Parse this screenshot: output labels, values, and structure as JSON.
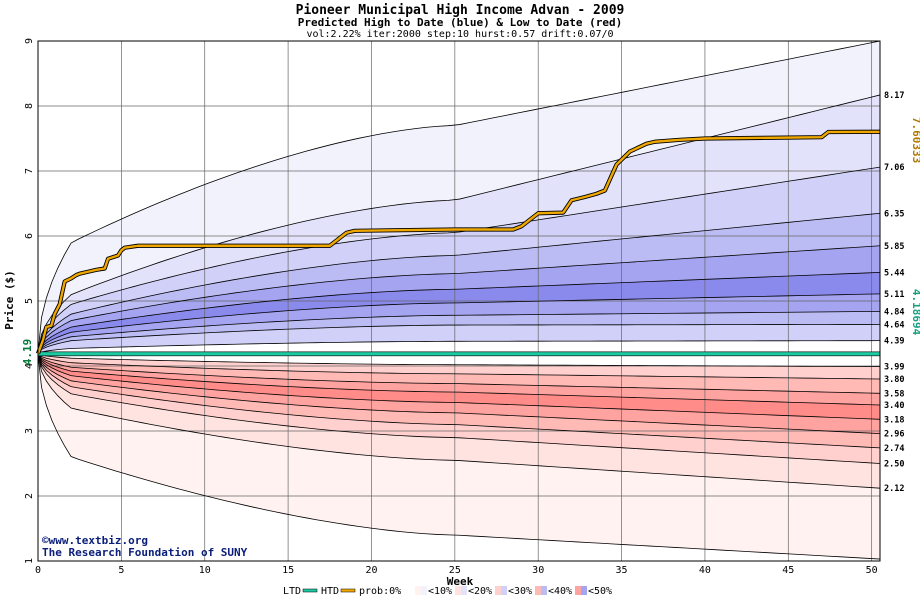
{
  "colors": {
    "htd": "#f0a800",
    "ltd": "#1ec8a0",
    "blue_bands": [
      "#f2f2fc",
      "#e2e2fb",
      "#d0d0f8",
      "#bcbcf4",
      "#a4a4f0",
      "#8a8aec"
    ],
    "red_bands": [
      "#fff2f1",
      "#ffe3e1",
      "#ffd0cd",
      "#ffbab6",
      "#ffa3a0",
      "#ff8c88"
    ]
  },
  "chart_data": {
    "type": "area",
    "title": "Pioneer Municipal High Income Advan - 2009",
    "subtitle": "Predicted High to Date (blue) &  Low to Date (red)",
    "params": "vol:2.22% iter:2000 step:10 hurst:0.57 drift:0.07/0",
    "xlabel": "Week",
    "ylabel": "Price ($)",
    "xlim": [
      0,
      50.5
    ],
    "ylim": [
      1,
      9
    ],
    "x_ticks": [
      0,
      5,
      10,
      15,
      20,
      25,
      30,
      35,
      40,
      45,
      50
    ],
    "y_ticks": [
      1,
      2,
      3,
      4,
      5,
      6,
      7,
      8,
      9
    ],
    "start_price": 4.19,
    "start_label": "4.19",
    "high_final_labels": [
      "8.17",
      "7.06",
      "6.35",
      "5.85",
      "5.44",
      "5.11",
      "4.84",
      "4.64",
      "4.39"
    ],
    "low_final_labels": [
      "3.99",
      "3.80",
      "3.58",
      "3.40",
      "3.18",
      "2.96",
      "2.74",
      "2.50",
      "2.12"
    ],
    "high_quantile_lines": [
      {
        "final": 9.0,
        "mid": 7.7,
        "early": 5.9,
        "label": ""
      },
      {
        "final": 8.17,
        "mid": 6.55,
        "early": 5.1,
        "label": "8.17"
      },
      {
        "final": 7.06,
        "mid": 6.05,
        "early": 4.95,
        "label": "7.06"
      },
      {
        "final": 6.35,
        "mid": 5.7,
        "early": 4.8,
        "label": "6.35"
      },
      {
        "final": 5.85,
        "mid": 5.42,
        "early": 4.7,
        "label": "5.85"
      },
      {
        "final": 5.44,
        "mid": 5.18,
        "early": 4.6,
        "label": "5.44"
      },
      {
        "final": 5.11,
        "mid": 4.97,
        "early": 4.52,
        "label": "5.11"
      },
      {
        "final": 4.84,
        "mid": 4.78,
        "early": 4.45,
        "label": "4.84"
      },
      {
        "final": 4.64,
        "mid": 4.63,
        "early": 4.39,
        "label": "4.64"
      },
      {
        "final": 4.39,
        "mid": 4.38,
        "early": 4.27,
        "label": "4.39"
      }
    ],
    "low_quantile_lines": [
      {
        "final": 3.99,
        "mid": 4.02,
        "early": 4.12,
        "label": "3.99"
      },
      {
        "final": 3.8,
        "mid": 3.88,
        "early": 4.05,
        "label": "3.80"
      },
      {
        "final": 3.58,
        "mid": 3.73,
        "early": 3.98,
        "label": "3.58"
      },
      {
        "final": 3.4,
        "mid": 3.6,
        "early": 3.92,
        "label": "3.40"
      },
      {
        "final": 3.18,
        "mid": 3.44,
        "early": 3.85,
        "label": "3.18"
      },
      {
        "final": 2.96,
        "mid": 3.28,
        "early": 3.77,
        "label": "2.96"
      },
      {
        "final": 2.74,
        "mid": 3.1,
        "early": 3.68,
        "label": "2.74"
      },
      {
        "final": 2.5,
        "mid": 2.9,
        "early": 3.57,
        "label": "2.50"
      },
      {
        "final": 2.12,
        "mid": 2.55,
        "early": 3.35,
        "label": "2.12"
      },
      {
        "final": 1.03,
        "mid": 1.4,
        "early": 2.6,
        "label": ""
      }
    ],
    "htd_series": {
      "name": "HTD",
      "final_label": "7.60333",
      "x": [
        0,
        0.3,
        0.5,
        0.8,
        1.0,
        1.3,
        1.6,
        2.0,
        2.3,
        2.5,
        3.0,
        3.5,
        4.0,
        4.2,
        4.8,
        5.0,
        5.2,
        6.0,
        17.5,
        18.0,
        18.5,
        19.0,
        25.0,
        28.5,
        29.0,
        30.0,
        31.5,
        32.0,
        32.8,
        33.5,
        34.0,
        34.7,
        35.5,
        36.5,
        37.0,
        38.5,
        40.0,
        47.0,
        47.4,
        50.5
      ],
      "y": [
        4.19,
        4.4,
        4.6,
        4.62,
        4.8,
        4.95,
        5.3,
        5.35,
        5.4,
        5.42,
        5.45,
        5.48,
        5.5,
        5.65,
        5.7,
        5.78,
        5.82,
        5.85,
        5.85,
        5.95,
        6.05,
        6.08,
        6.1,
        6.1,
        6.15,
        6.35,
        6.36,
        6.55,
        6.6,
        6.65,
        6.7,
        7.1,
        7.3,
        7.42,
        7.45,
        7.48,
        7.5,
        7.52,
        7.6,
        7.60333
      ]
    },
    "ltd_series": {
      "name": "LTD",
      "value": 4.18694,
      "final_label": "4.18694"
    },
    "legend": [
      {
        "name": "LTD",
        "kind": "line",
        "color": "#1ec8a0"
      },
      {
        "name": "HTD",
        "kind": "line",
        "color": "#f0a800"
      },
      {
        "name": "prob:0%",
        "kind": "label"
      },
      {
        "name": "<10%",
        "band": 0
      },
      {
        "name": "<20%",
        "band": 1
      },
      {
        "name": "<30%",
        "band": 2
      },
      {
        "name": "<40%",
        "band": 3
      },
      {
        "name": "<50%",
        "band": 4
      }
    ]
  },
  "credits": {
    "site": "www.textbiz.org",
    "org": "The Research Foundation of SUNY"
  }
}
